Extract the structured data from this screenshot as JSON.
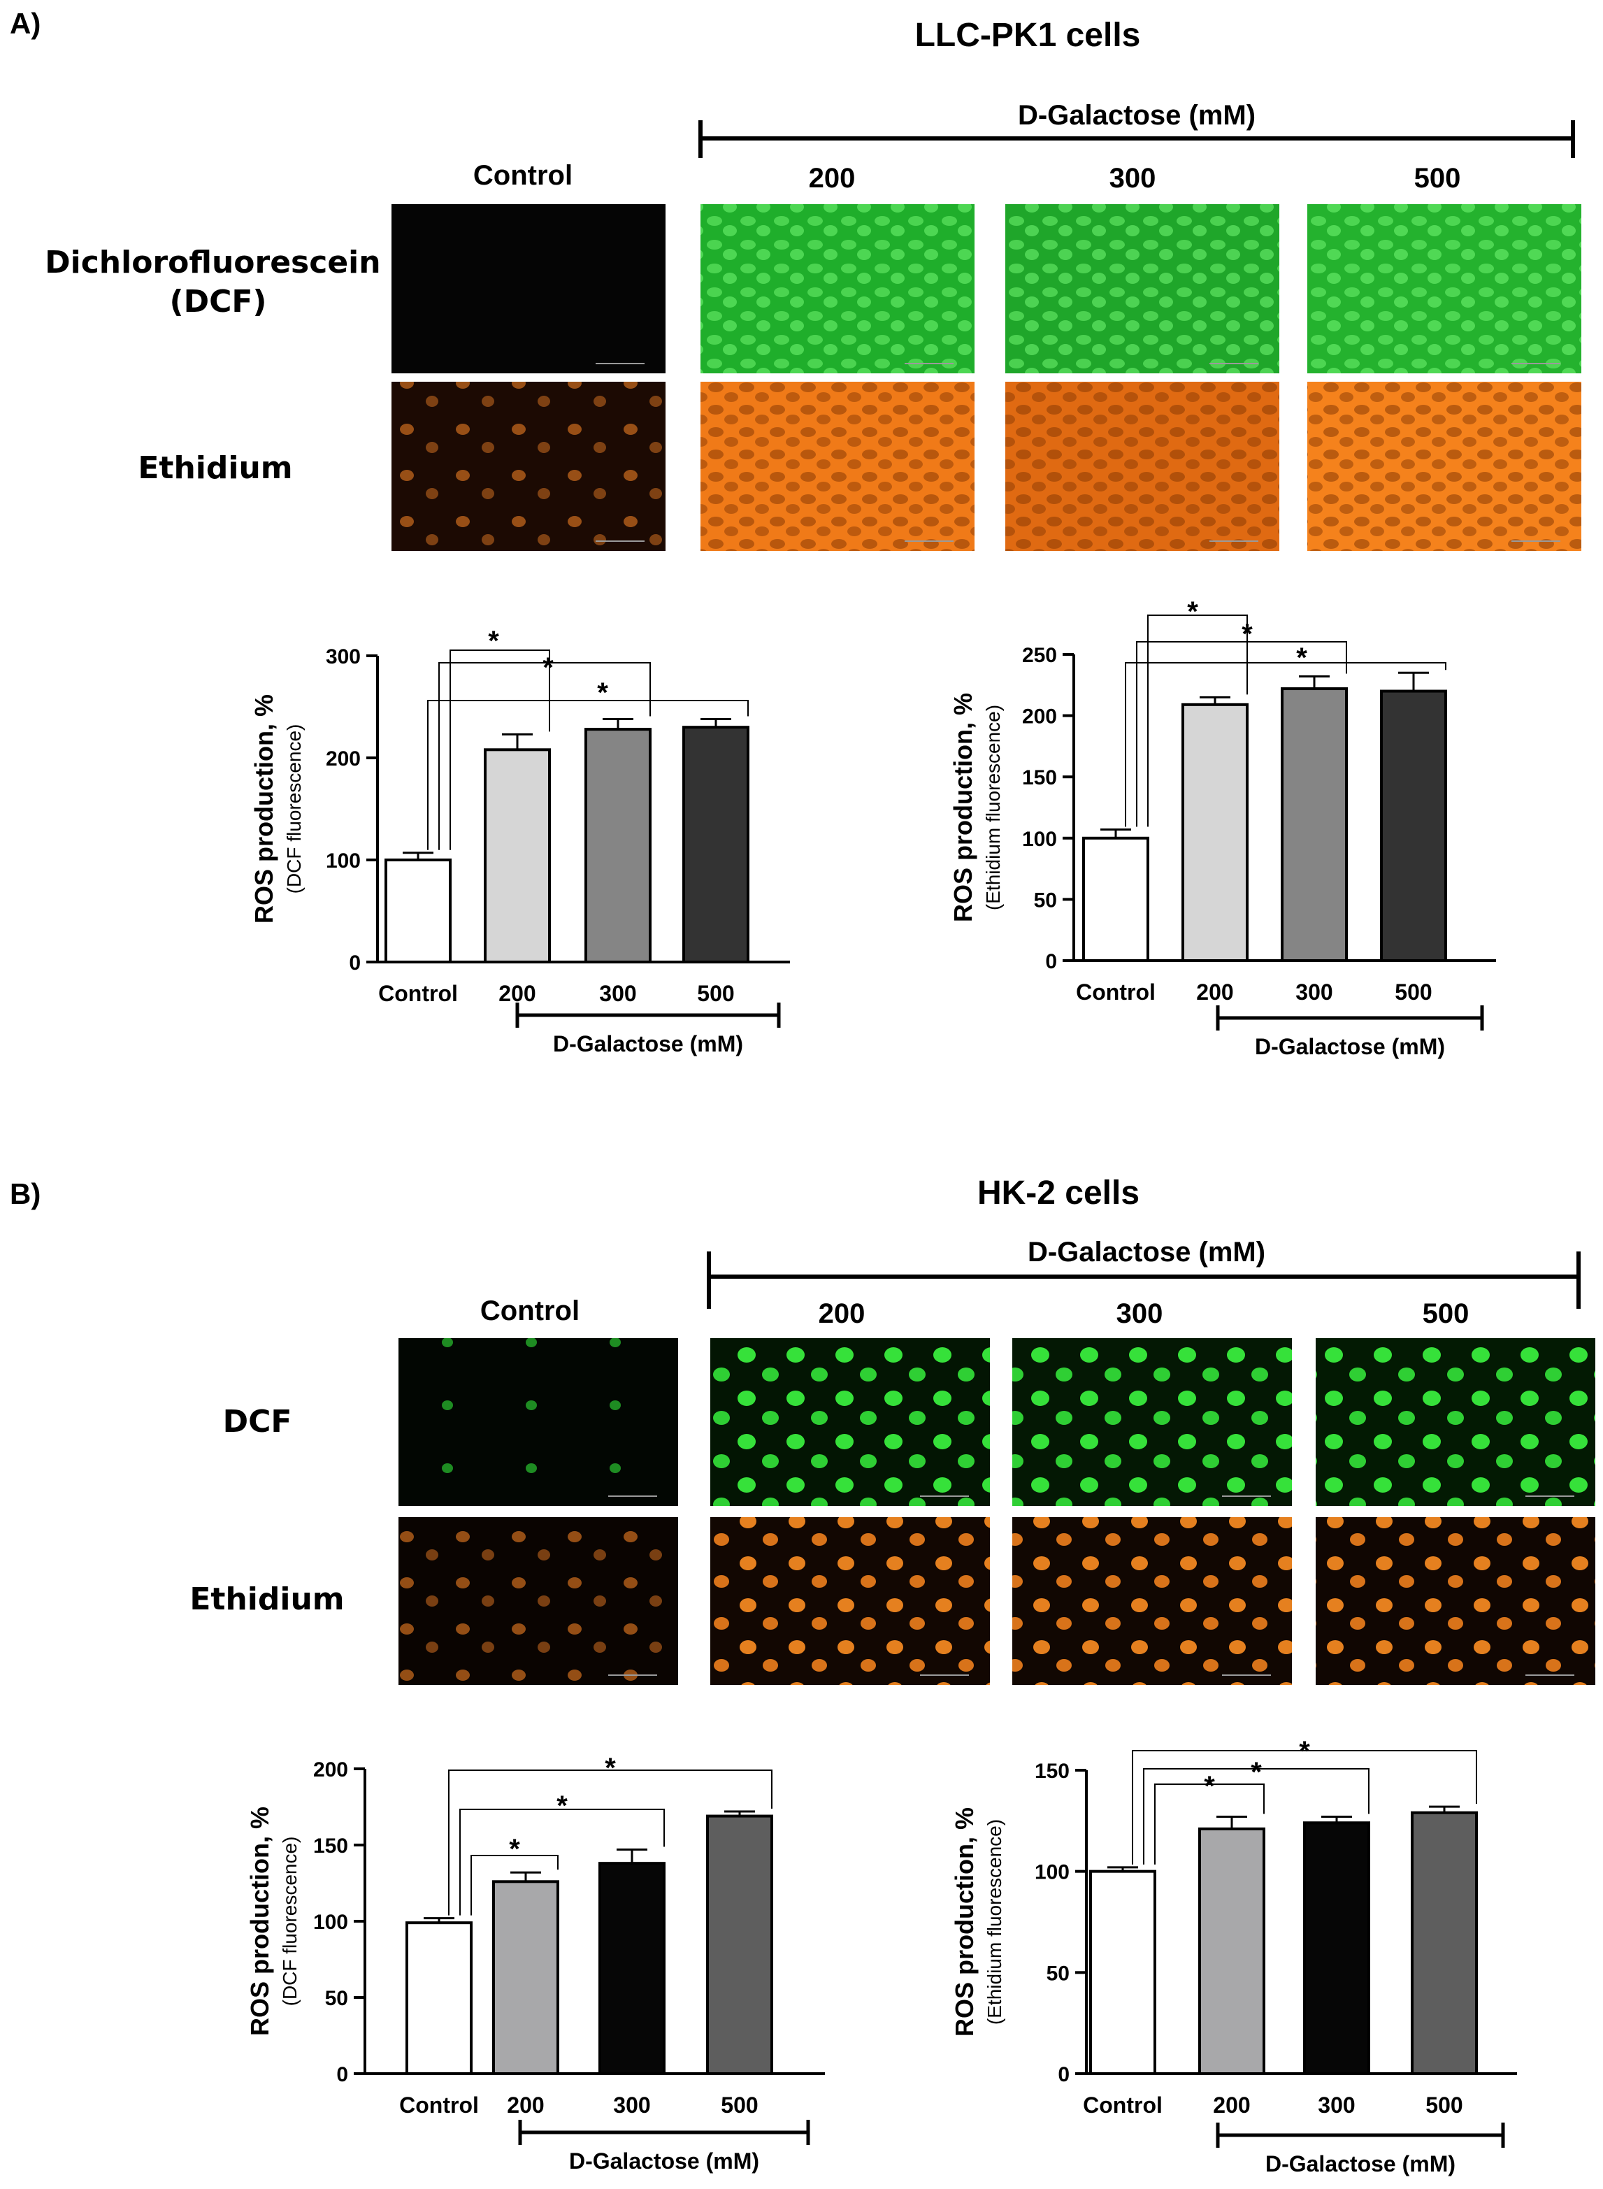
{
  "panels": [
    {
      "id": "A",
      "label": "A)",
      "title": "LLC-PK1 cells",
      "treatment_label": "D-Galactose (mM)",
      "columns": [
        "Control",
        "200",
        "300",
        "500"
      ],
      "rows": [
        "Dichlorofluorescein\n(DCF)",
        "Ethidium"
      ],
      "colors": {
        "dcf": [
          "#050505",
          "#1fae2b",
          "#1fa62a",
          "#24b22e"
        ],
        "eth": [
          "#1c0a03",
          "#f07a18",
          "#e06a12",
          "#f5821c"
        ]
      }
    },
    {
      "id": "B",
      "label": "B)",
      "title": "HK-2 cells",
      "treatment_label": "D-Galactose (mM)",
      "columns": [
        "Control",
        "200",
        "300",
        "500"
      ],
      "rows": [
        "DCF",
        "Ethidium"
      ],
      "colors": {
        "dcf": [
          "#020602",
          "#031503",
          "#041804",
          "#031a03"
        ],
        "eth": [
          "#0a0401",
          "#120702",
          "#110702",
          "#100602"
        ]
      }
    }
  ],
  "chart_data": [
    {
      "type": "bar",
      "panel": "A",
      "categories": [
        "Control",
        "200",
        "300",
        "500"
      ],
      "group_label": "D-Galactose (mM)",
      "values": [
        100,
        208,
        228,
        230
      ],
      "errors": [
        7,
        15,
        10,
        8
      ],
      "ylabel": "ROS production, %",
      "ylabel_sub": "(DCF fluorescence)",
      "ylim": [
        0,
        300
      ],
      "yticks": [
        0,
        100,
        200,
        300
      ],
      "bar_colors": [
        "#ffffff",
        "#d6d6d6",
        "#858585",
        "#333333"
      ],
      "significance": "*"
    },
    {
      "type": "bar",
      "panel": "A",
      "categories": [
        "Control",
        "200",
        "300",
        "500"
      ],
      "group_label": "D-Galactose (mM)",
      "values": [
        100,
        209,
        222,
        220
      ],
      "errors": [
        7,
        6,
        10,
        15
      ],
      "ylabel": "ROS production, %",
      "ylabel_sub": "(Ethidium fluorescence)",
      "ylim": [
        0,
        250
      ],
      "yticks": [
        0,
        50,
        100,
        150,
        200,
        250
      ],
      "bar_colors": [
        "#ffffff",
        "#d6d6d6",
        "#858585",
        "#333333"
      ],
      "significance": "*"
    },
    {
      "type": "bar",
      "panel": "B",
      "categories": [
        "Control",
        "200",
        "300",
        "500"
      ],
      "group_label": "D-Galactose (mM)",
      "values": [
        99,
        126,
        138,
        169
      ],
      "errors": [
        3,
        6,
        9,
        3
      ],
      "ylabel": "ROS production, %",
      "ylabel_sub": "(DCF fluorescence)",
      "ylim": [
        0,
        200
      ],
      "yticks": [
        0,
        50,
        100,
        150,
        200
      ],
      "bar_colors": [
        "#ffffff",
        "#a8a8aa",
        "#060606",
        "#5e5e5e"
      ],
      "significance": "*"
    },
    {
      "type": "bar",
      "panel": "B",
      "categories": [
        "Control",
        "200",
        "300",
        "500"
      ],
      "group_label": "D-Galactose (mM)",
      "values": [
        100,
        121,
        124,
        129
      ],
      "errors": [
        2,
        6,
        3,
        3
      ],
      "ylabel": "ROS production, %",
      "ylabel_sub": "(Ethidium fluorescence)",
      "ylim": [
        0,
        150
      ],
      "yticks": [
        0,
        50,
        100,
        150
      ],
      "bar_colors": [
        "#ffffff",
        "#a8a8aa",
        "#060606",
        "#5e5e5e"
      ],
      "significance": "*"
    }
  ]
}
